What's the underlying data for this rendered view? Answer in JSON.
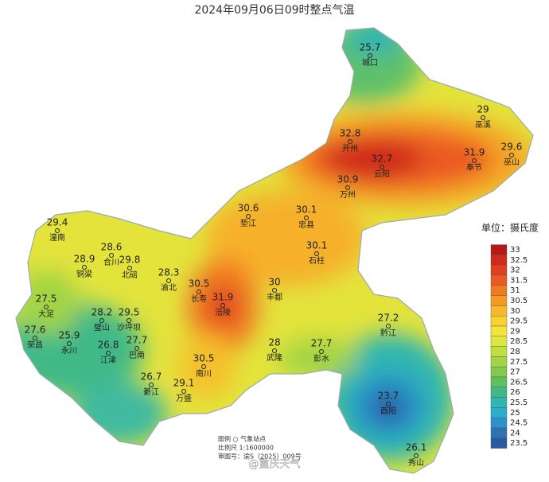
{
  "title": "2024年09月06日09时整点气温",
  "stations": [
    {
      "name": "城口",
      "value": 25.7
    },
    {
      "name": "巫溪",
      "value": 29
    },
    {
      "name": "巫山",
      "value": 29.6
    },
    {
      "name": "开州",
      "value": 32.8
    },
    {
      "name": "云阳",
      "value": 32.7
    },
    {
      "name": "奉节",
      "value": 31.9
    },
    {
      "name": "万州",
      "value": 30.9
    },
    {
      "name": "垫江",
      "value": 30.6
    },
    {
      "name": "忠县",
      "value": 30.1
    },
    {
      "name": "石柱",
      "value": 30.1
    },
    {
      "name": "丰都",
      "value": 30
    },
    {
      "name": "长寿",
      "value": 30.5
    },
    {
      "name": "涪陵",
      "value": 31.9
    },
    {
      "name": "潼南",
      "value": 29.4
    },
    {
      "name": "铜梁",
      "value": 28.9
    },
    {
      "name": "合川",
      "value": 28.6
    },
    {
      "name": "北碚",
      "value": 29.8
    },
    {
      "name": "渝北",
      "value": 28.3
    },
    {
      "name": "大足",
      "value": 27.5
    },
    {
      "name": "璧山",
      "value": 28.2
    },
    {
      "name": "沙坪坝",
      "value": 29.5
    },
    {
      "name": "荣昌",
      "value": 27.6
    },
    {
      "name": "永川",
      "value": 25.9
    },
    {
      "name": "江津",
      "value": 26.8
    },
    {
      "name": "巴南",
      "value": 27.7
    },
    {
      "name": "武隆",
      "value": 28
    },
    {
      "name": "彭水",
      "value": 27.7
    },
    {
      "name": "黔江",
      "value": 27.2
    },
    {
      "name": "南川",
      "value": 30.5
    },
    {
      "name": "万盛",
      "value": 29.1
    },
    {
      "name": "綦江",
      "value": 26.7
    },
    {
      "name": "酉阳",
      "value": 23.7
    },
    {
      "name": "秀山",
      "value": 26.1
    }
  ],
  "legend": {
    "unit": "单位：摄氏度",
    "levels": [
      {
        "value": 33,
        "color": "#b41a1a"
      },
      {
        "value": 32.5,
        "color": "#cf2a1c"
      },
      {
        "value": 32,
        "color": "#e04020"
      },
      {
        "value": 31.5,
        "color": "#ea5a22"
      },
      {
        "value": 31,
        "color": "#f07a22"
      },
      {
        "value": 30.5,
        "color": "#f49a24"
      },
      {
        "value": 30,
        "color": "#f8b82a"
      },
      {
        "value": 29.5,
        "color": "#fad230"
      },
      {
        "value": 29,
        "color": "#f5e43a"
      },
      {
        "value": 28.5,
        "color": "#dfe63e"
      },
      {
        "value": 28,
        "color": "#c2de3e"
      },
      {
        "value": 27.5,
        "color": "#a2d444"
      },
      {
        "value": 27,
        "color": "#84ca4a"
      },
      {
        "value": 26.5,
        "color": "#5ebf5e"
      },
      {
        "value": 26,
        "color": "#3fb987"
      },
      {
        "value": 25.5,
        "color": "#2fb6b0"
      },
      {
        "value": 25,
        "color": "#2aaed0"
      },
      {
        "value": 24.5,
        "color": "#2b92cc"
      },
      {
        "value": 24,
        "color": "#2f72b4"
      },
      {
        "value": 23.5,
        "color": "#2a5aa0"
      }
    ]
  },
  "notes": {
    "legend_item": "图例 ○ 气象站点",
    "scale": "比例尺 1:1600000",
    "map_number": "审图号：渝S（2025）009号"
  },
  "watermark": "@重庆天气"
}
